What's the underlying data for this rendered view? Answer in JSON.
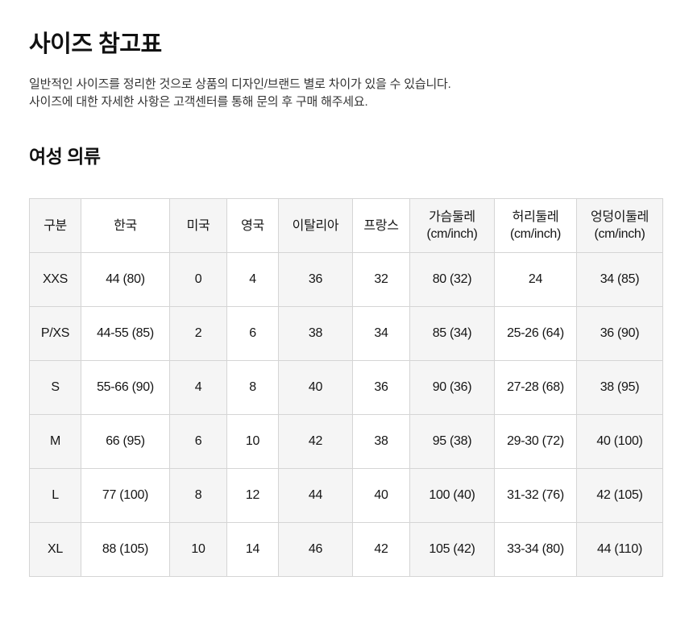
{
  "page": {
    "title": "사이즈 참고표",
    "description_lines": [
      "일반적인 사이즈를 정리한 것으로 상품의 디자인/브랜드 별로 차이가 있을 수 있습니다.",
      "사이즈에 대한 자세한 사항은 고객센터를 통해 문의 후 구매 해주세요."
    ],
    "section_title": "여성 의류"
  },
  "size_table": {
    "columns": [
      "구분",
      "한국",
      "미국",
      "영국",
      "이탈리아",
      "프랑스",
      "가슴둘레\n(cm/inch)",
      "허리둘레\n(cm/inch)",
      "엉덩이둘레\n(cm/inch)"
    ],
    "rows": [
      [
        "XXS",
        "44 (80)",
        "0",
        "4",
        "36",
        "32",
        "80 (32)",
        "24",
        "34 (85)"
      ],
      [
        "P/XS",
        "44-55 (85)",
        "2",
        "6",
        "38",
        "34",
        "85 (34)",
        "25-26 (64)",
        "36 (90)"
      ],
      [
        "S",
        "55-66 (90)",
        "4",
        "8",
        "40",
        "36",
        "90 (36)",
        "27-28 (68)",
        "38 (95)"
      ],
      [
        "M",
        "66 (95)",
        "6",
        "10",
        "42",
        "38",
        "95 (38)",
        "29-30 (72)",
        "40 (100)"
      ],
      [
        "L",
        "77 (100)",
        "8",
        "12",
        "44",
        "40",
        "100 (40)",
        "31-32 (76)",
        "42 (105)"
      ],
      [
        "XL",
        "88 (105)",
        "10",
        "14",
        "46",
        "42",
        "105 (42)",
        "33-34 (80)",
        "44 (110)"
      ]
    ]
  },
  "colors": {
    "text_primary": "#111111",
    "text_secondary": "#333333",
    "table_border": "#d5d5d5",
    "table_stripe_bg": "#f5f5f5",
    "page_bg": "#ffffff"
  }
}
